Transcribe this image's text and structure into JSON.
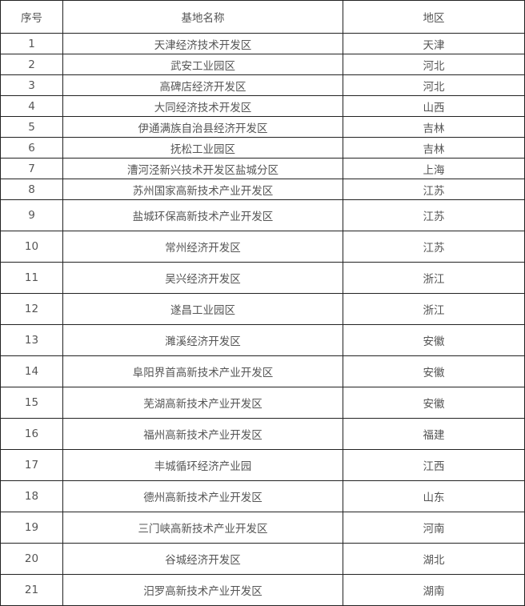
{
  "table": {
    "headers": [
      "序号",
      "基地名称",
      "地区"
    ],
    "rows": [
      [
        "1",
        "天津经济技术开发区",
        "天津"
      ],
      [
        "2",
        "武安工业园区",
        "河北"
      ],
      [
        "3",
        "高碑店经济开发区",
        "河北"
      ],
      [
        "4",
        "大同经济技术开发区",
        "山西"
      ],
      [
        "5",
        "伊通满族自治县经济开发区",
        "吉林"
      ],
      [
        "6",
        "抚松工业园区",
        "吉林"
      ],
      [
        "7",
        "漕河泾新兴技术开发区盐城分区",
        "上海"
      ],
      [
        "8",
        "苏州国家高新技术产业开发区",
        "江苏"
      ],
      [
        "9",
        "盐城环保高新技术产业开发区",
        "江苏"
      ],
      [
        "10",
        "常州经济开发区",
        "江苏"
      ],
      [
        "11",
        "吴兴经济开发区",
        "浙江"
      ],
      [
        "12",
        "遂昌工业园区",
        "浙江"
      ],
      [
        "13",
        "濉溪经济开发区",
        "安徽"
      ],
      [
        "14",
        "阜阳界首高新技术产业开发区",
        "安徽"
      ],
      [
        "15",
        "芜湖高新技术产业开发区",
        "安徽"
      ],
      [
        "16",
        "福州高新技术产业开发区",
        "福建"
      ],
      [
        "17",
        "丰城循环经济产业园",
        "江西"
      ],
      [
        "18",
        "德州高新技术产业开发区",
        "山东"
      ],
      [
        "19",
        "三门峡高新技术产业开发区",
        "河南"
      ],
      [
        "20",
        "谷城经济开发区",
        "湖北"
      ],
      [
        "21",
        "汨罗高新技术产业开发区",
        "湖南"
      ]
    ]
  }
}
